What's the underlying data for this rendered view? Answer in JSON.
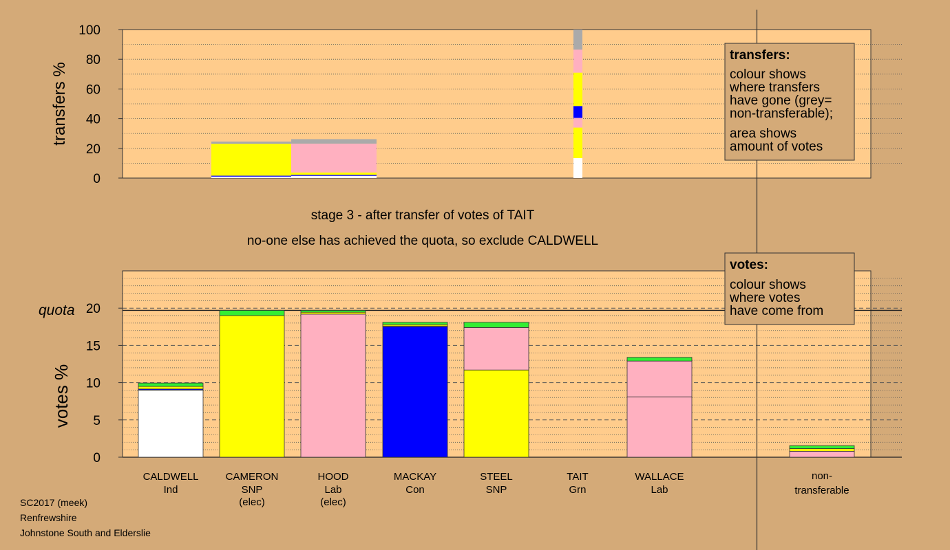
{
  "transfers_legend": {
    "title": "transfers:",
    "lines": [
      "colour shows",
      "where transfers",
      "have gone (grey=",
      "non-transferable);"
    ],
    "lines2": [
      "area shows",
      "amount of votes"
    ]
  },
  "votes_legend": {
    "title": "votes:",
    "lines": [
      "colour shows",
      "where votes",
      "have come from"
    ]
  },
  "stage_text": "stage 3 - after transfer of votes of TAIT",
  "action_text": "no-one else has achieved the quota, so exclude CALDWELL",
  "footer": [
    "SC2017 (meek)",
    "Renfrewshire",
    "Johnstone South and Elderslie"
  ],
  "colors": {
    "Ind": "#ffffff",
    "SNP": "#ffff00",
    "Lab": "#ffb0c0",
    "Con": "#0000ff",
    "Grn": "#33ee33",
    "nontransferable": "#aaaaaa",
    "background": "#d4aa78",
    "plot_background": "#ffcc8c"
  },
  "chart_data": [
    {
      "type": "bar",
      "name": "transfers",
      "ylabel": "transfers %",
      "ylim": [
        0,
        100
      ],
      "yticks": [
        0,
        20,
        40,
        60,
        80,
        100
      ],
      "columns": [
        {
          "candidate": "CAMERON",
          "bar": "wide",
          "layers": [
            {
              "party": "Ind",
              "value": 1
            },
            {
              "party": "Con",
              "value": 0.6
            },
            {
              "party": "SNP",
              "value": 21.5
            },
            {
              "party": "nontransferable",
              "value": 1.5
            }
          ]
        },
        {
          "candidate": "HOOD",
          "bar": "wide",
          "layers": [
            {
              "party": "Ind",
              "value": 1.5
            },
            {
              "party": "Con",
              "value": 0.6
            },
            {
              "party": "SNP",
              "value": 1.6
            },
            {
              "party": "Lab",
              "value": 19.5
            },
            {
              "party": "nontransferable",
              "value": 3
            }
          ]
        },
        {
          "candidate": "TAIT",
          "bar": "narrow",
          "layers": [
            {
              "party": "Ind",
              "value": 13.5
            },
            {
              "party": "SNP",
              "value": 20.5
            },
            {
              "party": "Lab",
              "value": 6.5
            },
            {
              "party": "Con",
              "value": 8
            },
            {
              "party": "SNP",
              "value": 22.5
            },
            {
              "party": "Lab",
              "value": 15.5
            },
            {
              "party": "nontransferable",
              "value": 13.5
            }
          ]
        }
      ]
    },
    {
      "type": "bar",
      "name": "votes",
      "ylabel": "votes %",
      "ylim": [
        0,
        25
      ],
      "yticks": [
        0,
        5,
        10,
        15,
        20
      ],
      "quota_label": "quota",
      "quota": 19.7,
      "categories": [
        "CALDWELL",
        "CAMERON",
        "HOOD",
        "MACKAY",
        "STEEL",
        "TAIT",
        "WALLACE",
        "non-transferable"
      ],
      "parties": [
        "Ind",
        "SNP",
        "Lab",
        "Con",
        "SNP",
        "Grn",
        "Lab",
        ""
      ],
      "notes": [
        "",
        "(elec)",
        "(elec)",
        "",
        "",
        "",
        "",
        ""
      ],
      "nontransferable_label": [
        "non-",
        "transferable"
      ],
      "stacks": [
        [
          {
            "party": "Ind",
            "value": 9.0
          },
          {
            "party": "Con",
            "value": 0.15
          },
          {
            "party": "SNP",
            "value": 0.35
          },
          {
            "party": "Grn",
            "value": 0.45
          }
        ],
        [
          {
            "party": "SNP",
            "value": 19.0
          },
          {
            "party": "Grn",
            "value": 0.7
          }
        ],
        [
          {
            "party": "Lab",
            "value": 19.2
          },
          {
            "party": "SNP",
            "value": 0.25
          },
          {
            "party": "Grn",
            "value": 0.25
          }
        ],
        [
          {
            "party": "Con",
            "value": 17.5
          },
          {
            "party": "Lab",
            "value": 0.1
          },
          {
            "party": "SNP",
            "value": 0.2
          },
          {
            "party": "Grn",
            "value": 0.3
          }
        ],
        [
          {
            "party": "SNP",
            "value": 11.7
          },
          {
            "party": "Lab",
            "value": 5.7
          },
          {
            "party": "Grn",
            "value": 0.7
          }
        ],
        [],
        [
          {
            "party": "Lab",
            "value": 8.1
          },
          {
            "party": "Lab",
            "value": 4.8
          },
          {
            "party": "Grn",
            "value": 0.5
          }
        ],
        [
          {
            "party": "Lab",
            "value": 0.8
          },
          {
            "party": "SNP",
            "value": 0.35
          },
          {
            "party": "Grn",
            "value": 0.4
          }
        ]
      ]
    }
  ]
}
